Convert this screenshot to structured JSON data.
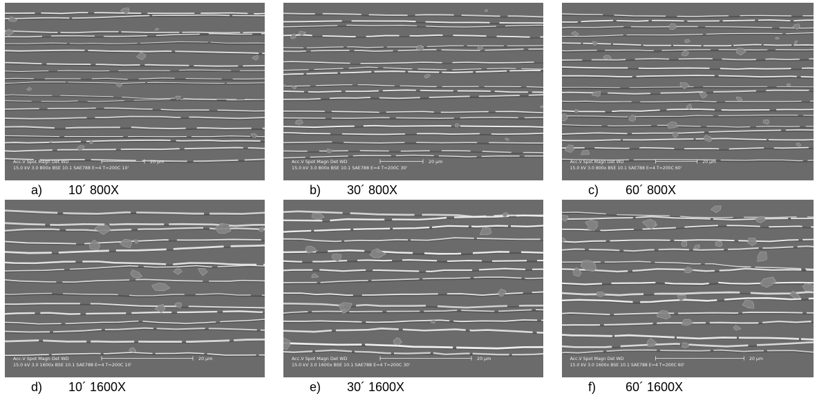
{
  "panels": [
    {
      "id": "a",
      "letter": "a)",
      "caption": "10´ 800X",
      "databar": {
        "line1": "Acc.V  Spot Magn    Det  WD",
        "line2": "15.0 kV 3.0   800x     BSE  10.1  SAE788 E=4 T=200C 10'",
        "scale": "20 µm"
      }
    },
    {
      "id": "b",
      "letter": "b)",
      "caption": "30´ 800X",
      "databar": {
        "line1": "Acc.V  Spot Magn    Det  WD",
        "line2": "15.0 kV 3.0   800x     BSE  10.1  SAE788 E=4 T=200C 30'",
        "scale": "20 µm"
      }
    },
    {
      "id": "c",
      "letter": "c)",
      "caption": "60´ 800X",
      "databar": {
        "line1": "Acc.V  Spot Magn    Det  WD",
        "line2": "15.0 kV 3.0   800x     BSE  10.1  SAE788 E=4 T=200C 60'",
        "scale": "20 µm"
      }
    },
    {
      "id": "d",
      "letter": "d)",
      "caption": "10´ 1600X",
      "databar": {
        "line1": "Acc.V  Spot Magn    Det  WD",
        "line2": "15.0 kV 3.0   1600x   BSE  10.1  SAE788 E=4 T=200C 10'",
        "scale": "20 µm"
      }
    },
    {
      "id": "e",
      "letter": "e)",
      "caption": "30´ 1600X",
      "databar": {
        "line1": "Acc.V  Spot Magn    Det  WD",
        "line2": "15.0 kV 3.0   1600x   BSE  10.1  SAE788 E=4 T=200C 30'",
        "scale": "20 µm"
      }
    },
    {
      "id": "f",
      "letter": "f)",
      "caption": "60´ 1600X",
      "databar": {
        "line1": "Acc.V  Spot Magn    Det  WD",
        "line2": "15.0 kV 3.0   1600x   BSE  10.1  SAE788 E=4 T=200C 60'",
        "scale": "20 µm"
      }
    }
  ],
  "colors": {
    "matrix": "#6b6b6b",
    "inclusion_bright": "#efefef",
    "inclusion_shadow": "#3f3f3f",
    "particle": "#858585"
  }
}
